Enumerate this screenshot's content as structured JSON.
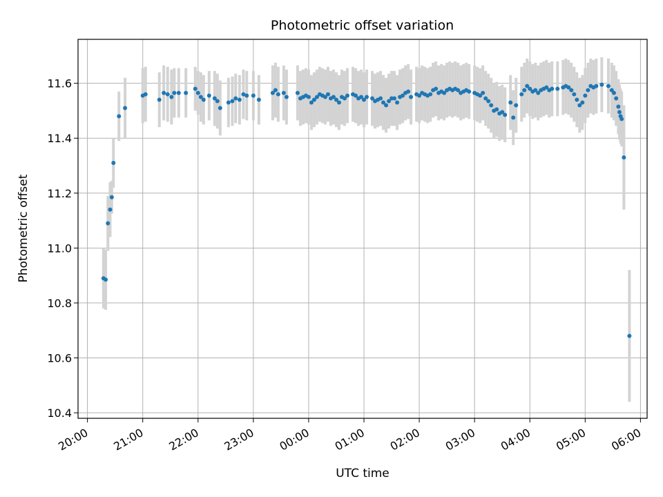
{
  "chart_data": {
    "type": "scatter",
    "title": "Photometric offset variation",
    "xlabel": "UTC time",
    "ylabel": "Photometric offset",
    "x_unit": "hours since 20:00 UTC",
    "xlim": [
      -0.17,
      10.12
    ],
    "ylim": [
      10.38,
      11.76
    ],
    "grid": true,
    "x_ticks": [
      {
        "value": 0,
        "label": "20:00"
      },
      {
        "value": 1,
        "label": "21:00"
      },
      {
        "value": 2,
        "label": "22:00"
      },
      {
        "value": 3,
        "label": "23:00"
      },
      {
        "value": 4,
        "label": "00:00"
      },
      {
        "value": 5,
        "label": "01:00"
      },
      {
        "value": 6,
        "label": "02:00"
      },
      {
        "value": 7,
        "label": "03:00"
      },
      {
        "value": 8,
        "label": "04:00"
      },
      {
        "value": 9,
        "label": "05:00"
      },
      {
        "value": 10,
        "label": "06:00"
      }
    ],
    "y_ticks": [
      {
        "value": 10.4,
        "label": "10.4"
      },
      {
        "value": 10.6,
        "label": "10.6"
      },
      {
        "value": 10.8,
        "label": "10.8"
      },
      {
        "value": 11.0,
        "label": "11.0"
      },
      {
        "value": 11.2,
        "label": "11.2"
      },
      {
        "value": 11.4,
        "label": "11.4"
      },
      {
        "value": 11.6,
        "label": "11.6"
      }
    ],
    "series": [
      {
        "name": "offset",
        "marker_color": "#1f77b4",
        "errorbar_color": "#d3d3d3",
        "points": [
          [
            0.29,
            10.89,
            0.11
          ],
          [
            0.33,
            10.885,
            0.11
          ],
          [
            0.37,
            11.09,
            0.1
          ],
          [
            0.41,
            11.14,
            0.1
          ],
          [
            0.44,
            11.185,
            0.06
          ],
          [
            0.47,
            11.31,
            0.09
          ],
          [
            0.57,
            11.48,
            0.09
          ],
          [
            0.68,
            11.51,
            0.11
          ],
          [
            1.0,
            11.555,
            0.1
          ],
          [
            1.05,
            11.56,
            0.1
          ],
          [
            1.3,
            11.54,
            0.1
          ],
          [
            1.38,
            11.565,
            0.1
          ],
          [
            1.45,
            11.56,
            0.1
          ],
          [
            1.52,
            11.55,
            0.1
          ],
          [
            1.57,
            11.565,
            0.09
          ],
          [
            1.65,
            11.565,
            0.09
          ],
          [
            1.78,
            11.565,
            0.09
          ],
          [
            1.95,
            11.58,
            0.08
          ],
          [
            2.0,
            11.565,
            0.08
          ],
          [
            2.05,
            11.55,
            0.09
          ],
          [
            2.1,
            11.54,
            0.09
          ],
          [
            2.2,
            11.555,
            0.09
          ],
          [
            2.3,
            11.545,
            0.1
          ],
          [
            2.35,
            11.535,
            0.1
          ],
          [
            2.4,
            11.51,
            0.1
          ],
          [
            2.55,
            11.53,
            0.09
          ],
          [
            2.62,
            11.535,
            0.09
          ],
          [
            2.68,
            11.545,
            0.09
          ],
          [
            2.75,
            11.54,
            0.09
          ],
          [
            2.82,
            11.56,
            0.09
          ],
          [
            2.88,
            11.555,
            0.09
          ],
          [
            3.0,
            11.555,
            0.09
          ],
          [
            3.1,
            11.54,
            0.09
          ],
          [
            3.35,
            11.565,
            0.1
          ],
          [
            3.4,
            11.575,
            0.1
          ],
          [
            3.45,
            11.56,
            0.1
          ],
          [
            3.55,
            11.565,
            0.1
          ],
          [
            3.6,
            11.55,
            0.1
          ],
          [
            3.8,
            11.565,
            0.1
          ],
          [
            3.85,
            11.545,
            0.1
          ],
          [
            3.9,
            11.55,
            0.1
          ],
          [
            3.95,
            11.555,
            0.1
          ],
          [
            4.0,
            11.55,
            0.1
          ],
          [
            4.05,
            11.53,
            0.1
          ],
          [
            4.1,
            11.54,
            0.1
          ],
          [
            4.15,
            11.55,
            0.1
          ],
          [
            4.2,
            11.56,
            0.1
          ],
          [
            4.25,
            11.555,
            0.1
          ],
          [
            4.3,
            11.55,
            0.1
          ],
          [
            4.35,
            11.56,
            0.1
          ],
          [
            4.4,
            11.545,
            0.1
          ],
          [
            4.45,
            11.55,
            0.1
          ],
          [
            4.5,
            11.54,
            0.1
          ],
          [
            4.55,
            11.53,
            0.1
          ],
          [
            4.6,
            11.55,
            0.1
          ],
          [
            4.65,
            11.545,
            0.1
          ],
          [
            4.7,
            11.555,
            0.1
          ],
          [
            4.8,
            11.56,
            0.1
          ],
          [
            4.85,
            11.555,
            0.1
          ],
          [
            4.9,
            11.545,
            0.1
          ],
          [
            4.95,
            11.55,
            0.1
          ],
          [
            5.0,
            11.54,
            0.1
          ],
          [
            5.05,
            11.55,
            0.1
          ],
          [
            5.15,
            11.545,
            0.1
          ],
          [
            5.2,
            11.535,
            0.1
          ],
          [
            5.25,
            11.54,
            0.1
          ],
          [
            5.3,
            11.545,
            0.1
          ],
          [
            5.35,
            11.53,
            0.1
          ],
          [
            5.4,
            11.52,
            0.1
          ],
          [
            5.45,
            11.535,
            0.1
          ],
          [
            5.5,
            11.545,
            0.1
          ],
          [
            5.55,
            11.545,
            0.1
          ],
          [
            5.6,
            11.53,
            0.1
          ],
          [
            5.65,
            11.55,
            0.1
          ],
          [
            5.7,
            11.555,
            0.1
          ],
          [
            5.75,
            11.565,
            0.1
          ],
          [
            5.8,
            11.57,
            0.1
          ],
          [
            5.85,
            11.55,
            0.1
          ],
          [
            5.95,
            11.56,
            0.1
          ],
          [
            6.0,
            11.555,
            0.1
          ],
          [
            6.05,
            11.565,
            0.1
          ],
          [
            6.1,
            11.56,
            0.1
          ],
          [
            6.15,
            11.555,
            0.1
          ],
          [
            6.2,
            11.56,
            0.1
          ],
          [
            6.25,
            11.575,
            0.1
          ],
          [
            6.3,
            11.58,
            0.1
          ],
          [
            6.35,
            11.565,
            0.1
          ],
          [
            6.4,
            11.57,
            0.1
          ],
          [
            6.45,
            11.565,
            0.1
          ],
          [
            6.5,
            11.575,
            0.1
          ],
          [
            6.55,
            11.58,
            0.1
          ],
          [
            6.6,
            11.575,
            0.1
          ],
          [
            6.65,
            11.58,
            0.1
          ],
          [
            6.7,
            11.575,
            0.1
          ],
          [
            6.75,
            11.565,
            0.1
          ],
          [
            6.8,
            11.57,
            0.1
          ],
          [
            6.85,
            11.575,
            0.1
          ],
          [
            6.9,
            11.57,
            0.1
          ],
          [
            7.0,
            11.565,
            0.1
          ],
          [
            7.05,
            11.56,
            0.1
          ],
          [
            7.1,
            11.555,
            0.1
          ],
          [
            7.15,
            11.565,
            0.1
          ],
          [
            7.2,
            11.545,
            0.1
          ],
          [
            7.25,
            11.535,
            0.1
          ],
          [
            7.3,
            11.52,
            0.1
          ],
          [
            7.35,
            11.5,
            0.1
          ],
          [
            7.4,
            11.505,
            0.1
          ],
          [
            7.45,
            11.49,
            0.1
          ],
          [
            7.5,
            11.495,
            0.1
          ],
          [
            7.55,
            11.485,
            0.1
          ],
          [
            7.65,
            11.53,
            0.1
          ],
          [
            7.7,
            11.475,
            0.1
          ],
          [
            7.75,
            11.52,
            0.1
          ],
          [
            7.85,
            11.56,
            0.1
          ],
          [
            7.9,
            11.575,
            0.1
          ],
          [
            7.95,
            11.59,
            0.1
          ],
          [
            8.0,
            11.58,
            0.1
          ],
          [
            8.05,
            11.57,
            0.1
          ],
          [
            8.1,
            11.575,
            0.1
          ],
          [
            8.15,
            11.565,
            0.1
          ],
          [
            8.2,
            11.575,
            0.1
          ],
          [
            8.25,
            11.58,
            0.1
          ],
          [
            8.3,
            11.585,
            0.1
          ],
          [
            8.35,
            11.575,
            0.1
          ],
          [
            8.4,
            11.58,
            0.1
          ],
          [
            8.5,
            11.58,
            0.1
          ],
          [
            8.6,
            11.585,
            0.1
          ],
          [
            8.65,
            11.59,
            0.1
          ],
          [
            8.7,
            11.585,
            0.1
          ],
          [
            8.75,
            11.575,
            0.1
          ],
          [
            8.8,
            11.56,
            0.1
          ],
          [
            8.85,
            11.54,
            0.1
          ],
          [
            8.9,
            11.52,
            0.1
          ],
          [
            8.95,
            11.53,
            0.1
          ],
          [
            9.0,
            11.555,
            0.1
          ],
          [
            9.05,
            11.575,
            0.1
          ],
          [
            9.1,
            11.59,
            0.1
          ],
          [
            9.15,
            11.585,
            0.1
          ],
          [
            9.2,
            11.59,
            0.1
          ],
          [
            9.3,
            11.595,
            0.1
          ],
          [
            9.42,
            11.59,
            0.1
          ],
          [
            9.48,
            11.575,
            0.1
          ],
          [
            9.52,
            11.565,
            0.1
          ],
          [
            9.56,
            11.545,
            0.1
          ],
          [
            9.6,
            11.515,
            0.1
          ],
          [
            9.62,
            11.495,
            0.1
          ],
          [
            9.64,
            11.48,
            0.1
          ],
          [
            9.66,
            11.47,
            0.1
          ],
          [
            9.7,
            11.33,
            0.19
          ],
          [
            9.8,
            10.68,
            0.24
          ]
        ]
      }
    ]
  }
}
